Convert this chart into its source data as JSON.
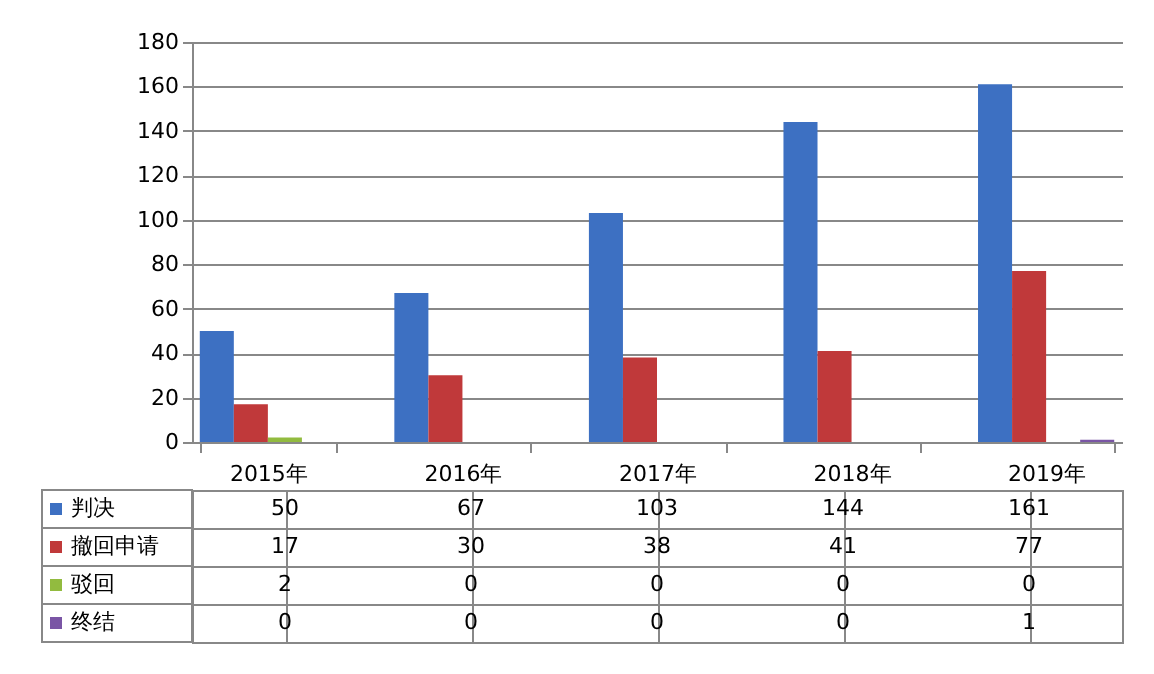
{
  "chart_data": {
    "type": "bar",
    "categories": [
      "2015年",
      "2016年",
      "2017年",
      "2018年",
      "2019年"
    ],
    "series": [
      {
        "name": "判决",
        "color": "#3d70c2",
        "values": [
          50,
          67,
          103,
          144,
          161
        ]
      },
      {
        "name": "撤回申请",
        "color": "#c0393a",
        "values": [
          17,
          30,
          38,
          41,
          77
        ]
      },
      {
        "name": "驳回",
        "color": "#92bb3f",
        "values": [
          2,
          0,
          0,
          0,
          0
        ]
      },
      {
        "name": "终结",
        "color": "#7a55a5",
        "values": [
          0,
          0,
          0,
          0,
          1
        ]
      }
    ],
    "ylim": [
      0,
      180
    ],
    "yticks": [
      0,
      20,
      40,
      60,
      80,
      100,
      120,
      140,
      160,
      180
    ],
    "grid": "y",
    "legend": "bottom left",
    "data_labels": true
  }
}
